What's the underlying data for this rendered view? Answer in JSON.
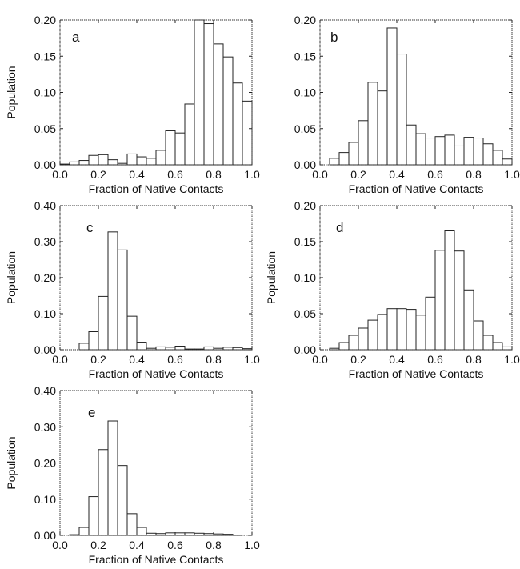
{
  "chart_data": [
    {
      "type": "bar",
      "panel_label": "a",
      "xlabel": "Fraction of Native Contacts",
      "ylabel": "Population",
      "xlim": [
        0,
        1
      ],
      "ylim": [
        0,
        0.2
      ],
      "xticks": [
        "0.0",
        "0.2",
        "0.4",
        "0.6",
        "0.8",
        "1.0"
      ],
      "yticks": [
        "0.00",
        "0.05",
        "0.10",
        "0.15",
        "0.20"
      ],
      "bin_width": 0.05,
      "bin_starts": [
        0.0,
        0.05,
        0.1,
        0.15,
        0.2,
        0.25,
        0.3,
        0.35,
        0.4,
        0.45,
        0.5,
        0.55,
        0.6,
        0.65,
        0.7,
        0.75,
        0.8,
        0.85,
        0.9,
        0.95
      ],
      "values": [
        0.001,
        0.004,
        0.006,
        0.013,
        0.014,
        0.007,
        0.002,
        0.015,
        0.011,
        0.009,
        0.02,
        0.047,
        0.044,
        0.084,
        0.2,
        0.195,
        0.167,
        0.149,
        0.113,
        0.088
      ]
    },
    {
      "type": "bar",
      "panel_label": "b",
      "xlabel": "Fraction of Native Contacts",
      "ylabel": "",
      "xlim": [
        0,
        1
      ],
      "ylim": [
        0,
        0.2
      ],
      "xticks": [
        "0.0",
        "0.2",
        "0.4",
        "0.6",
        "0.8",
        "1.0"
      ],
      "yticks": [
        "0.00",
        "0.05",
        "0.10",
        "0.15",
        "0.20"
      ],
      "bin_width": 0.05,
      "bin_starts": [
        0.0,
        0.05,
        0.1,
        0.15,
        0.2,
        0.25,
        0.3,
        0.35,
        0.4,
        0.45,
        0.5,
        0.55,
        0.6,
        0.65,
        0.7,
        0.75,
        0.8,
        0.85,
        0.9,
        0.95
      ],
      "values": [
        0.0,
        0.009,
        0.017,
        0.031,
        0.061,
        0.114,
        0.102,
        0.189,
        0.153,
        0.055,
        0.043,
        0.037,
        0.039,
        0.041,
        0.026,
        0.038,
        0.037,
        0.029,
        0.02,
        0.008
      ]
    },
    {
      "type": "bar",
      "panel_label": "c",
      "xlabel": "Fraction of Native Contacts",
      "ylabel": "Population",
      "xlim": [
        0,
        1
      ],
      "ylim": [
        0,
        0.4
      ],
      "xticks": [
        "0.0",
        "0.2",
        "0.4",
        "0.6",
        "0.8",
        "1.0"
      ],
      "yticks": [
        "0.00",
        "0.10",
        "0.20",
        "0.30",
        "0.40"
      ],
      "bin_width": 0.05,
      "bin_starts": [
        0.0,
        0.05,
        0.1,
        0.15,
        0.2,
        0.25,
        0.3,
        0.35,
        0.4,
        0.45,
        0.5,
        0.55,
        0.6,
        0.65,
        0.7,
        0.75,
        0.8,
        0.85,
        0.9,
        0.95
      ],
      "values": [
        0.0,
        0.0,
        0.018,
        0.05,
        0.148,
        0.327,
        0.277,
        0.093,
        0.021,
        0.004,
        0.008,
        0.007,
        0.01,
        0.002,
        0.002,
        0.008,
        0.004,
        0.007,
        0.006,
        0.003
      ]
    },
    {
      "type": "bar",
      "panel_label": "d",
      "xlabel": "Fraction of Native Contacts",
      "ylabel": "Population",
      "xlim": [
        0,
        1
      ],
      "ylim": [
        0,
        0.2
      ],
      "xticks": [
        "0.0",
        "0.2",
        "0.4",
        "0.6",
        "0.8",
        "1.0"
      ],
      "yticks": [
        "0.00",
        "0.05",
        "0.10",
        "0.15",
        "0.20"
      ],
      "bin_width": 0.05,
      "bin_starts": [
        0.0,
        0.05,
        0.1,
        0.15,
        0.2,
        0.25,
        0.3,
        0.35,
        0.4,
        0.45,
        0.5,
        0.55,
        0.6,
        0.65,
        0.7,
        0.75,
        0.8,
        0.85,
        0.9,
        0.95
      ],
      "values": [
        0.0,
        0.002,
        0.01,
        0.02,
        0.03,
        0.041,
        0.049,
        0.057,
        0.057,
        0.056,
        0.048,
        0.073,
        0.138,
        0.165,
        0.137,
        0.083,
        0.04,
        0.02,
        0.01,
        0.004
      ]
    },
    {
      "type": "bar",
      "panel_label": "e",
      "xlabel": "Fraction of Native Contacts",
      "ylabel": "Population",
      "xlim": [
        0,
        1
      ],
      "ylim": [
        0,
        0.4
      ],
      "xticks": [
        "0.0",
        "0.2",
        "0.4",
        "0.6",
        "0.8",
        "1.0"
      ],
      "yticks": [
        "0.00",
        "0.10",
        "0.20",
        "0.30",
        "0.40"
      ],
      "bin_width": 0.05,
      "bin_starts": [
        0.0,
        0.05,
        0.1,
        0.15,
        0.2,
        0.25,
        0.3,
        0.35,
        0.4,
        0.45,
        0.5,
        0.55,
        0.6,
        0.65,
        0.7,
        0.75,
        0.8,
        0.85,
        0.9,
        0.95
      ],
      "values": [
        0.0,
        0.002,
        0.022,
        0.107,
        0.237,
        0.316,
        0.193,
        0.06,
        0.022,
        0.006,
        0.005,
        0.007,
        0.007,
        0.007,
        0.006,
        0.005,
        0.004,
        0.003,
        0.001,
        0.0
      ]
    }
  ]
}
